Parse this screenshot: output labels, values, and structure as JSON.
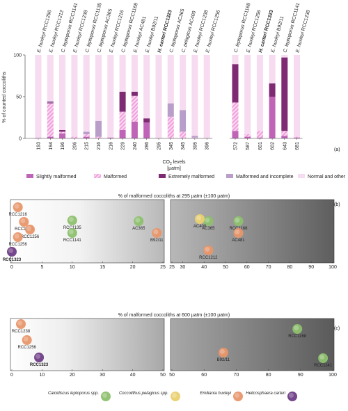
{
  "colors": {
    "slightly": "#c064b8",
    "malformed_stripe": "#f2a6de",
    "extremely": "#7e2b73",
    "incomplete": "#b89ec9",
    "normal": "#f6dbf1",
    "calcidiscus": "#8dc06e",
    "coccolithus": "#ead070",
    "emiliania": "#e8966a",
    "helicosphaera": "#6f3d86"
  },
  "panel_a": {
    "label": "(a)",
    "chart_data": {
      "type": "bar",
      "stacked": true,
      "ylabel": "% of counted coccoliths",
      "xlabel_line1": "CO",
      "xlabel_sub": "2",
      "xlabel_rest": " levels",
      "xlabel_line2": "[µatm]",
      "ylim": [
        0,
        100
      ],
      "yticks": [
        "0",
        "50",
        "100"
      ],
      "categories": [
        "193",
        "194",
        "196",
        "206",
        "215",
        "216",
        "216",
        "229",
        "240",
        "286",
        "295",
        "345",
        "345",
        "395",
        "396",
        "572",
        "587",
        "601",
        "602",
        "643",
        "681"
      ],
      "strains": [
        {
          "pre": "E. huxleyi ",
          "name": "RCC1256",
          "bold": false
        },
        {
          "pre": "E. huxleyi ",
          "name": "RCC1212",
          "bold": false
        },
        {
          "pre": "C. leptoporus ",
          "name": "RCC1141",
          "bold": false
        },
        {
          "pre": "E. huxleyi ",
          "name": "RCC1238",
          "bold": false
        },
        {
          "pre": "C. leptoporus ",
          "name": "RCC1135",
          "bold": false
        },
        {
          "pre": "C. leptoporus ",
          "name": "AC365",
          "bold": false
        },
        {
          "pre": "E. huxleyi ",
          "name": "RCC1216",
          "bold": false
        },
        {
          "pre": "C. leptoporus ",
          "name": "RCC1168",
          "bold": false
        },
        {
          "pre": "E. huxleyi ",
          "name": "AC481",
          "bold": false
        },
        {
          "pre": "E. huxleyi ",
          "name": "B92/11",
          "bold": false
        },
        {
          "pre": "H. carteri ",
          "name": "RCC1323",
          "bold": true
        },
        {
          "pre": "C. leptoporus ",
          "name": "AC365",
          "bold": false
        },
        {
          "pre": "C. pelagicus ",
          "name": "AC400",
          "bold": false
        },
        {
          "pre": "E. huxleyi ",
          "name": "RCC1238",
          "bold": false
        },
        {
          "pre": "E. huxleyi ",
          "name": "RCC1256",
          "bold": false
        },
        {
          "pre": "C. leptoporus ",
          "name": "RCC1168",
          "bold": false
        },
        {
          "pre": "E. huxleyi ",
          "name": "RCC1256",
          "bold": false
        },
        {
          "pre": "H. carteri ",
          "name": "RCC1323",
          "bold": true
        },
        {
          "pre": "E. huxleyi ",
          "name": "B92/11",
          "bold": false
        },
        {
          "pre": "C. leptoporus ",
          "name": "RCC1141",
          "bold": false
        },
        {
          "pre": "E. huxleyi ",
          "name": "RCC1238",
          "bold": false
        }
      ],
      "series": [
        {
          "name": "Slightly malformed",
          "key": "slightly",
          "values": [
            0,
            2,
            6,
            0,
            2,
            0,
            1,
            10,
            20,
            19,
            0,
            0,
            0,
            0,
            0,
            9,
            2,
            1,
            50,
            3,
            1
          ]
        },
        {
          "name": "Malformed",
          "key": "malformed_stripe",
          "values": [
            1,
            40,
            2,
            2,
            3,
            2,
            0,
            22,
            31,
            0,
            0,
            26,
            8,
            1,
            0,
            34,
            3,
            8,
            0,
            6,
            1
          ]
        },
        {
          "name": "Extremely malformed",
          "key": "extremely",
          "values": [
            0,
            1,
            2,
            0,
            0,
            0,
            0,
            24,
            5,
            5,
            0,
            0,
            0,
            0,
            0,
            46,
            0,
            0,
            16,
            88,
            0
          ]
        },
        {
          "name": "Malformed and incomplete",
          "key": "incomplete",
          "values": [
            0,
            2,
            0,
            0,
            3,
            19,
            0,
            0,
            0,
            0,
            0,
            16,
            26,
            2,
            0,
            0,
            0,
            0,
            0,
            0,
            0
          ]
        },
        {
          "name": "Normal and other",
          "key": "normal",
          "values": [
            99,
            55,
            90,
            98,
            92,
            79,
            99,
            44,
            44,
            76,
            100,
            58,
            66,
            97,
            100,
            11,
            95,
            91,
            34,
            3,
            98
          ]
        }
      ]
    },
    "legend": [
      {
        "label": "Slightly malformed",
        "key": "slightly"
      },
      {
        "label": "Malformed",
        "key": "malformed_stripe"
      },
      {
        "label": "Extremely malformed",
        "key": "extremely"
      },
      {
        "label": "Malformed and incomplete",
        "key": "incomplete"
      },
      {
        "label": "Normal and other",
        "key": "normal"
      }
    ]
  },
  "panel_b": {
    "label": "(b)",
    "title": "% of malformed coccoliths at 295 µatm (±100 µatm)",
    "chart_data": {
      "type": "scatter",
      "left_xlim": [
        0,
        25
      ],
      "right_xlim": [
        25,
        100
      ],
      "left_ticks": [
        "0",
        "5",
        "10",
        "15",
        "20",
        "25"
      ],
      "right_ticks": [
        "25",
        "30",
        "40",
        "50",
        "60",
        "70",
        "80",
        "90",
        "100"
      ],
      "points": [
        {
          "label": "RCC1216",
          "x": 1,
          "sp": "emiliania",
          "bold": false
        },
        {
          "label": "RCC1238",
          "x": 2,
          "sp": "emiliania",
          "bold": false
        },
        {
          "label": "RCC1256",
          "x": 3,
          "sp": "emiliania",
          "bold": false
        },
        {
          "label": "RCC1256",
          "x": 1,
          "sp": "emiliania",
          "bold": false
        },
        {
          "label": "RCC1323",
          "x": 0,
          "sp": "helicosphaera",
          "bold": true
        },
        {
          "label": "RCC1135",
          "x": 10,
          "sp": "calcidiscus",
          "bold": false
        },
        {
          "label": "RCC1141",
          "x": 10,
          "sp": "calcidiscus",
          "bold": false
        },
        {
          "label": "AC365",
          "x": 21,
          "sp": "calcidiscus",
          "bold": false
        },
        {
          "label": "B92/11",
          "x": 24,
          "sp": "emiliania",
          "bold": false
        },
        {
          "label": "AC365",
          "x": 42,
          "sp": "calcidiscus",
          "bold": false
        },
        {
          "label": "AC400",
          "x": 38,
          "sp": "coccolithus",
          "bold": false
        },
        {
          "label": "RCC1168",
          "x": 56,
          "sp": "calcidiscus",
          "bold": false
        },
        {
          "label": "AC481",
          "x": 56,
          "sp": "emiliania",
          "bold": false
        },
        {
          "label": "RCC1212",
          "x": 42,
          "sp": "emiliania",
          "bold": false
        }
      ]
    }
  },
  "panel_c": {
    "label": "(c)",
    "title": "% of malformed coccoliths at 600 µatm (±100 µatm)",
    "chart_data": {
      "type": "scatter",
      "left_xlim": [
        0,
        50
      ],
      "right_xlim": [
        50,
        100
      ],
      "left_ticks": [
        "0",
        "10",
        "20",
        "30",
        "40",
        "50"
      ],
      "right_ticks": [
        "50",
        "60",
        "70",
        "80",
        "90",
        "100"
      ],
      "points": [
        {
          "label": "RCC1238",
          "x": 3,
          "sp": "emiliania",
          "bold": false
        },
        {
          "label": "RCC1256",
          "x": 5,
          "sp": "emiliania",
          "bold": false
        },
        {
          "label": "RCC1323",
          "x": 9,
          "sp": "helicosphaera",
          "bold": true
        },
        {
          "label": "B92/11",
          "x": 66,
          "sp": "emiliania",
          "bold": false
        },
        {
          "label": "RCC1168",
          "x": 89,
          "sp": "calcidiscus",
          "bold": false
        },
        {
          "label": "RCC1141",
          "x": 97,
          "sp": "calcidiscus",
          "bold": false
        }
      ]
    }
  },
  "species_legend": [
    {
      "label": "Calcidiscus leptoporus spp.",
      "key": "calcidiscus"
    },
    {
      "label": "Coccolithus pelagicus spp.",
      "key": "coccolithus"
    },
    {
      "label": "Emiliania huxleyi",
      "key": "emiliania"
    },
    {
      "label": "Helicosphaera carteri",
      "key": "helicosphaera"
    }
  ]
}
